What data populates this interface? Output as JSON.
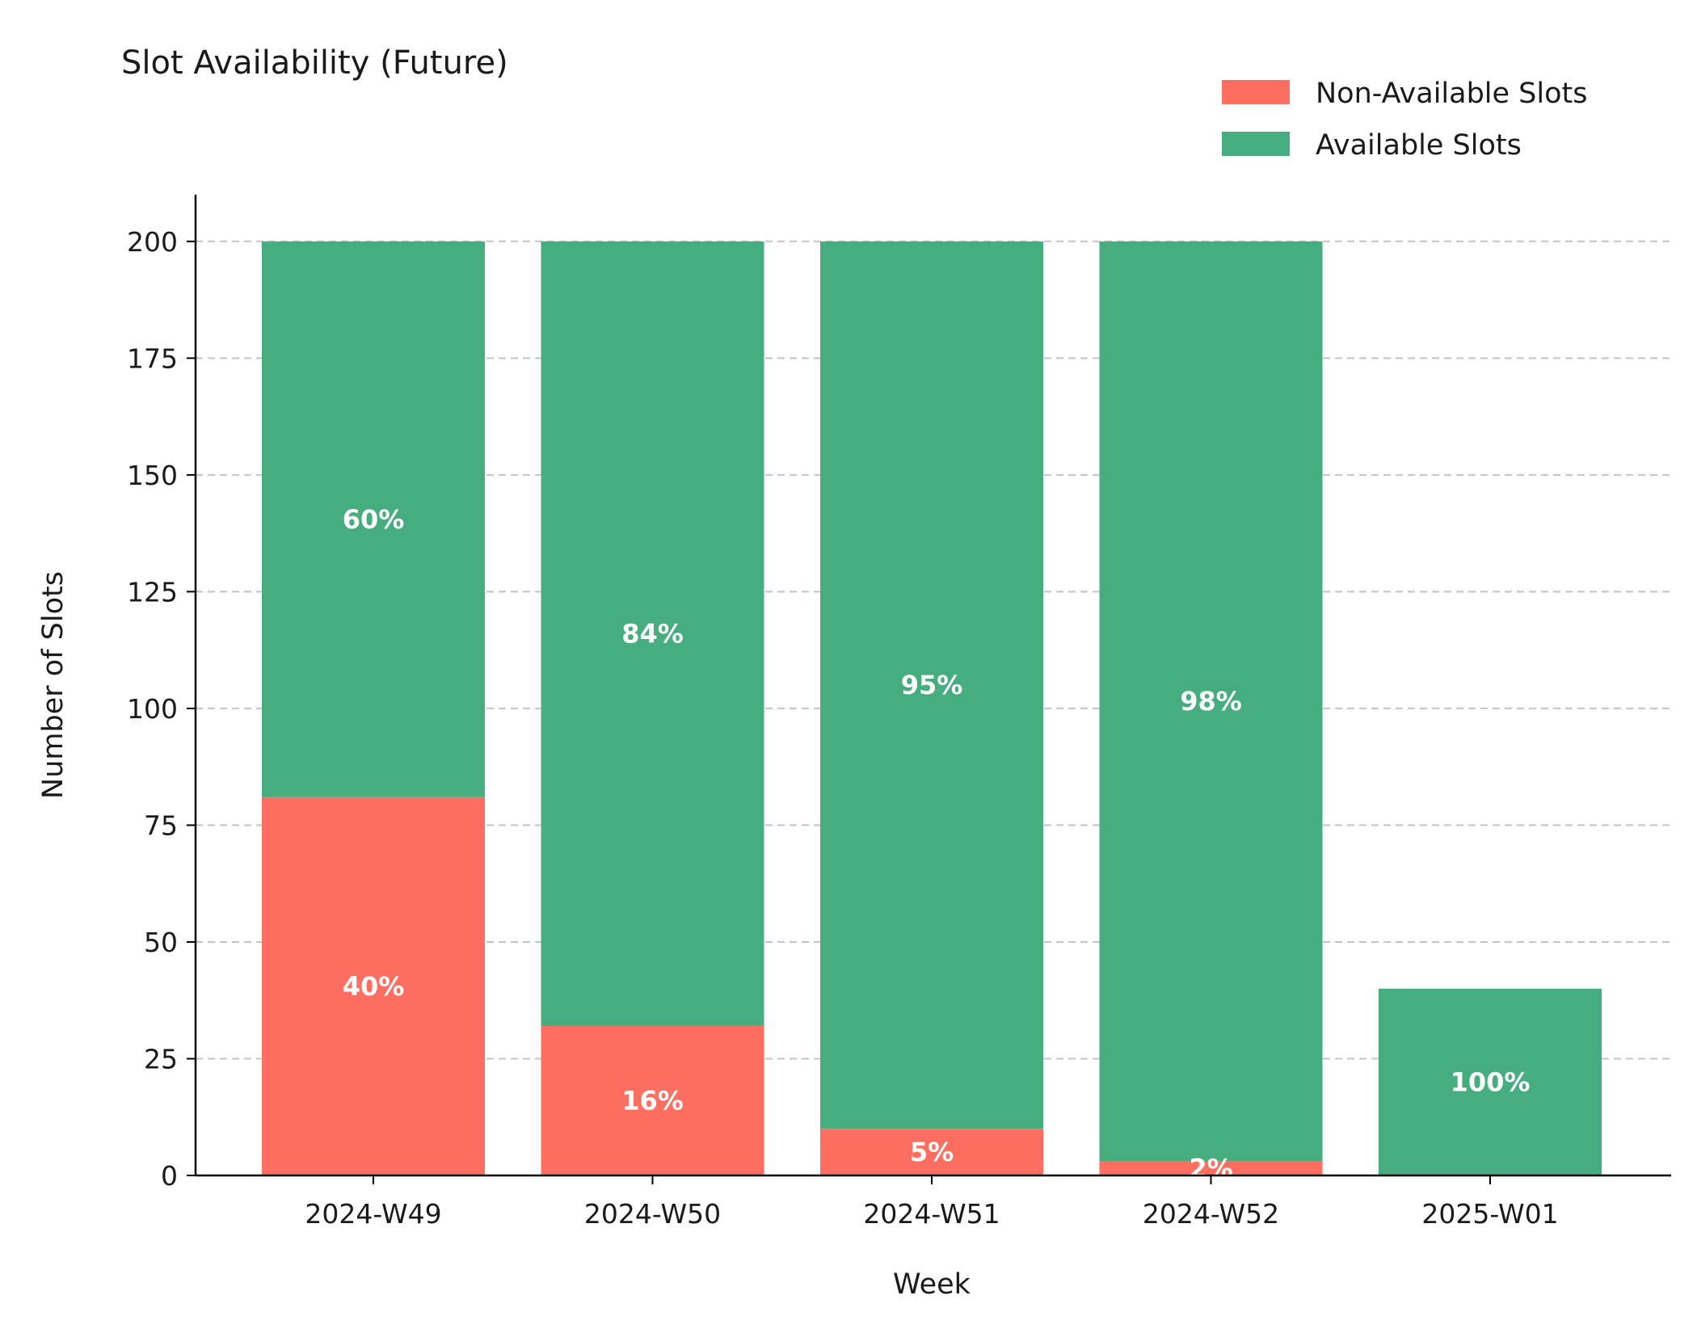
{
  "chart_data": {
    "type": "bar",
    "stacked": true,
    "title": "Slot Availability (Future)",
    "xlabel": "Week",
    "ylabel": "Number of Slots",
    "categories": [
      "2024-W49",
      "2024-W50",
      "2024-W51",
      "2024-W52",
      "2025-W01"
    ],
    "series": [
      {
        "name": "Non-Available Slots",
        "color": "#ff6f61",
        "values": [
          81,
          32,
          10,
          3,
          0
        ],
        "labels": [
          "40%",
          "16%",
          "5%",
          "2%",
          ""
        ]
      },
      {
        "name": "Available Slots",
        "color": "#45ad7e",
        "values": [
          119,
          168,
          190,
          197,
          40
        ],
        "labels": [
          "60%",
          "84%",
          "95%",
          "98%",
          "100%"
        ]
      }
    ],
    "ylim": [
      0,
      210
    ],
    "yticks": [
      0,
      25,
      50,
      75,
      100,
      125,
      150,
      175,
      200
    ],
    "grid": "y-dashed",
    "legend": "top-right"
  }
}
